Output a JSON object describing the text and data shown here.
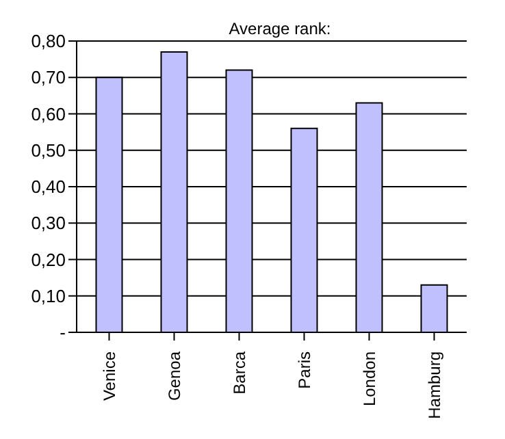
{
  "chart_data": {
    "type": "bar",
    "title": "Average rank:",
    "categories": [
      "Venice",
      "Genoa",
      "Barca",
      "Paris",
      "London",
      "Hamburg"
    ],
    "values": [
      0.7,
      0.77,
      0.72,
      0.56,
      0.63,
      0.13
    ],
    "color": "#c0c0ff",
    "ylim": [
      0,
      0.8
    ],
    "yticks": [
      {
        "value": 0,
        "label": "-"
      },
      {
        "value": 0.1,
        "label": "0,10"
      },
      {
        "value": 0.2,
        "label": "0,20"
      },
      {
        "value": 0.3,
        "label": "0,30"
      },
      {
        "value": 0.4,
        "label": "0,40"
      },
      {
        "value": 0.5,
        "label": "0,50"
      },
      {
        "value": 0.6,
        "label": "0,60"
      },
      {
        "value": 0.7,
        "label": "0,70"
      },
      {
        "value": 0.8,
        "label": "0,80"
      }
    ],
    "grid": "y"
  }
}
